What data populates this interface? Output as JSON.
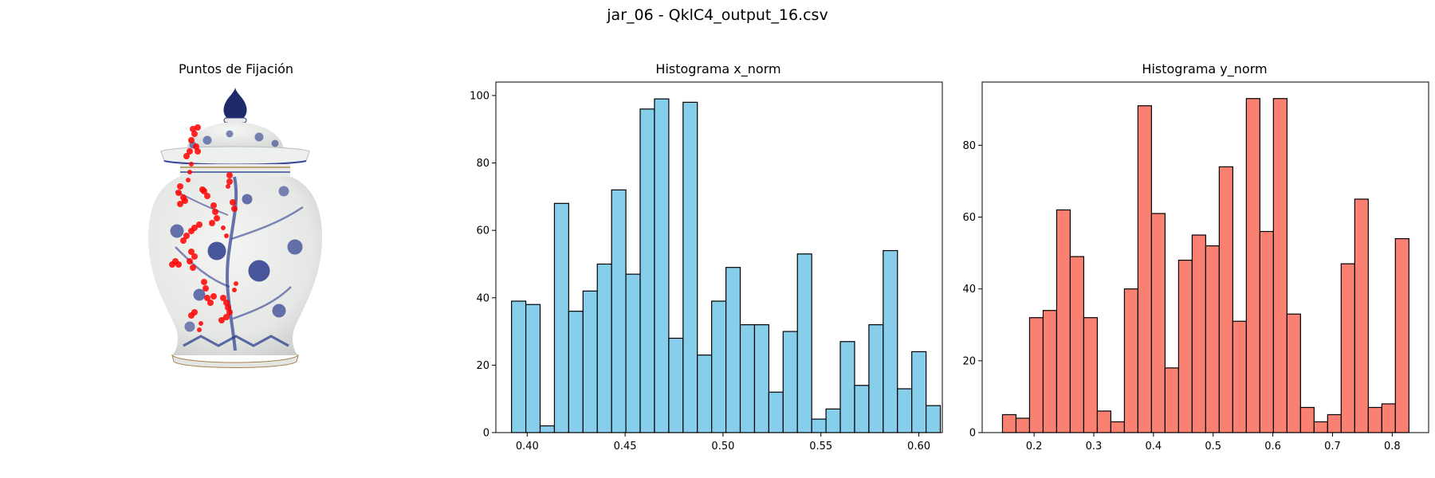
{
  "figure": {
    "suptitle": "jar_06 - QklC4_output_16.csv"
  },
  "panels": {
    "image": {
      "title": "Puntos de Fijación",
      "image_subject": "blue-and-white porcelain ginger jar with lid",
      "fixation_color": "#ff0000"
    }
  },
  "chart_data": [
    {
      "type": "bar",
      "title": "Histograma x_norm",
      "xlabel": "",
      "ylabel": "",
      "bar_color": "#87ceeb",
      "edge_color": "#000000",
      "xlim": [
        0.384,
        0.612
      ],
      "ylim": [
        0,
        104
      ],
      "bin_start": 0.392,
      "bin_width": 0.0073,
      "values": [
        39,
        38,
        2,
        68,
        36,
        42,
        50,
        72,
        47,
        96,
        99,
        28,
        98,
        23,
        39,
        49,
        32,
        32,
        12,
        30,
        53,
        4,
        7,
        27,
        14,
        32,
        54,
        13,
        24,
        8
      ],
      "xticks": [
        "0.40",
        "0.45",
        "0.50",
        "0.55",
        "0.60"
      ],
      "xtick_values": [
        0.4,
        0.45,
        0.5,
        0.55,
        0.6
      ],
      "yticks": [
        "0",
        "20",
        "40",
        "60",
        "80",
        "100"
      ],
      "ytick_values": [
        0,
        20,
        40,
        60,
        80,
        100
      ],
      "grid": false
    },
    {
      "type": "bar",
      "title": "Histograma y_norm",
      "xlabel": "",
      "ylabel": "",
      "bar_color": "#fa8072",
      "edge_color": "#000000",
      "xlim": [
        0.113,
        0.861
      ],
      "ylim": [
        0,
        97.6
      ],
      "bin_start": 0.147,
      "bin_width": 0.0227,
      "values": [
        5,
        4,
        32,
        34,
        62,
        49,
        32,
        6,
        3,
        40,
        91,
        61,
        18,
        48,
        55,
        52,
        74,
        31,
        93,
        56,
        93,
        33,
        7,
        3,
        5,
        47,
        65,
        7,
        8,
        54
      ],
      "xticks": [
        "0.2",
        "0.3",
        "0.4",
        "0.5",
        "0.6",
        "0.7",
        "0.8"
      ],
      "xtick_values": [
        0.2,
        0.3,
        0.4,
        0.5,
        0.6,
        0.7,
        0.8
      ],
      "yticks": [
        "0",
        "20",
        "40",
        "60",
        "80"
      ],
      "ytick_values": [
        0,
        20,
        40,
        60,
        80
      ],
      "grid": false
    }
  ]
}
